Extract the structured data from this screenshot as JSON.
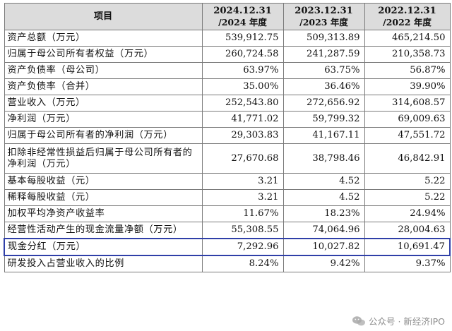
{
  "table": {
    "header": {
      "item": "项目",
      "periods": [
        {
          "date": "2024.12.31",
          "year": "/2024 年度"
        },
        {
          "date": "2023.12.31",
          "year": "/2023 年度"
        },
        {
          "date": "2022.12.31",
          "year": "/2022 年度"
        }
      ]
    },
    "rows": [
      {
        "label": "资产总额（万元）",
        "values": [
          "539,912.75",
          "509,313.89",
          "465,214.50"
        ]
      },
      {
        "label": "归属于母公司所有者权益（万元）",
        "values": [
          "260,724.58",
          "241,287.59",
          "210,358.73"
        ]
      },
      {
        "label": "资产负债率（母公司）",
        "values": [
          "63.97%",
          "63.75%",
          "56.87%"
        ]
      },
      {
        "label": "资产负债率（合并）",
        "values": [
          "35.00%",
          "36.46%",
          "39.90%"
        ]
      },
      {
        "label": "营业收入（万元）",
        "values": [
          "252,543.80",
          "272,656.92",
          "314,608.57"
        ]
      },
      {
        "label": "净利润（万元）",
        "values": [
          "41,771.02",
          "59,799.32",
          "69,009.63"
        ]
      },
      {
        "label": "归属于母公司所有者的净利润（万元）",
        "values": [
          "29,303.83",
          "41,167.11",
          "47,551.72"
        ]
      },
      {
        "label": "扣除非经常性损益后归属于母公司所有者的净利润（万元）",
        "values": [
          "27,670.68",
          "38,798.46",
          "46,842.91"
        ]
      },
      {
        "label": "基本每股收益（元）",
        "values": [
          "3.21",
          "4.52",
          "5.22"
        ]
      },
      {
        "label": "稀释每股收益（元）",
        "values": [
          "3.21",
          "4.52",
          "5.22"
        ]
      },
      {
        "label": "加权平均净资产收益率",
        "values": [
          "11.67%",
          "18.23%",
          "24.94%"
        ]
      },
      {
        "label": "经营性活动产生的现金流量净额（万元）",
        "values": [
          "55,308.55",
          "74,064.96",
          "28,004.63"
        ]
      },
      {
        "label": "现金分红（万元）",
        "values": [
          "7,292.96",
          "10,027.82",
          "10,691.47"
        ]
      },
      {
        "label": "研发投入占营业收入的比例",
        "values": [
          "8.24%",
          "9.42%",
          "9.37%"
        ]
      }
    ]
  },
  "watermark": {
    "text": "公众号 · 新经济IPO",
    "icon": "wechat-icon"
  },
  "colors": {
    "header_bg": "#dcdcdc",
    "highlight_border": "#2f3fa8",
    "grid": "#7a7a7a"
  }
}
